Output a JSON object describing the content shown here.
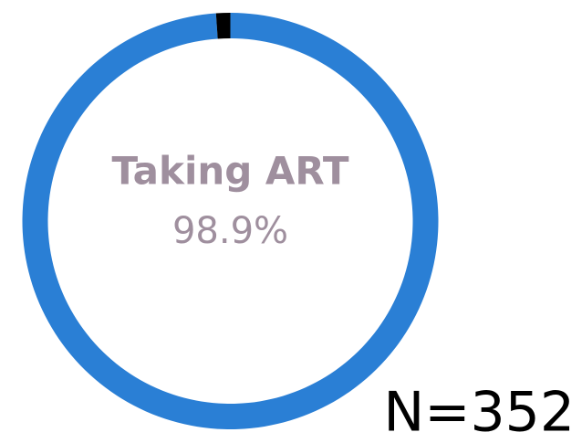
{
  "chart_data": {
    "type": "donut",
    "categories": [
      "Taking ART",
      null
    ],
    "values": [
      98.9,
      1.1
    ],
    "value_labels": [
      "98.9%",
      null
    ],
    "colors": [
      "#2a7fd5",
      "#000000"
    ],
    "annotation": "N=352"
  }
}
